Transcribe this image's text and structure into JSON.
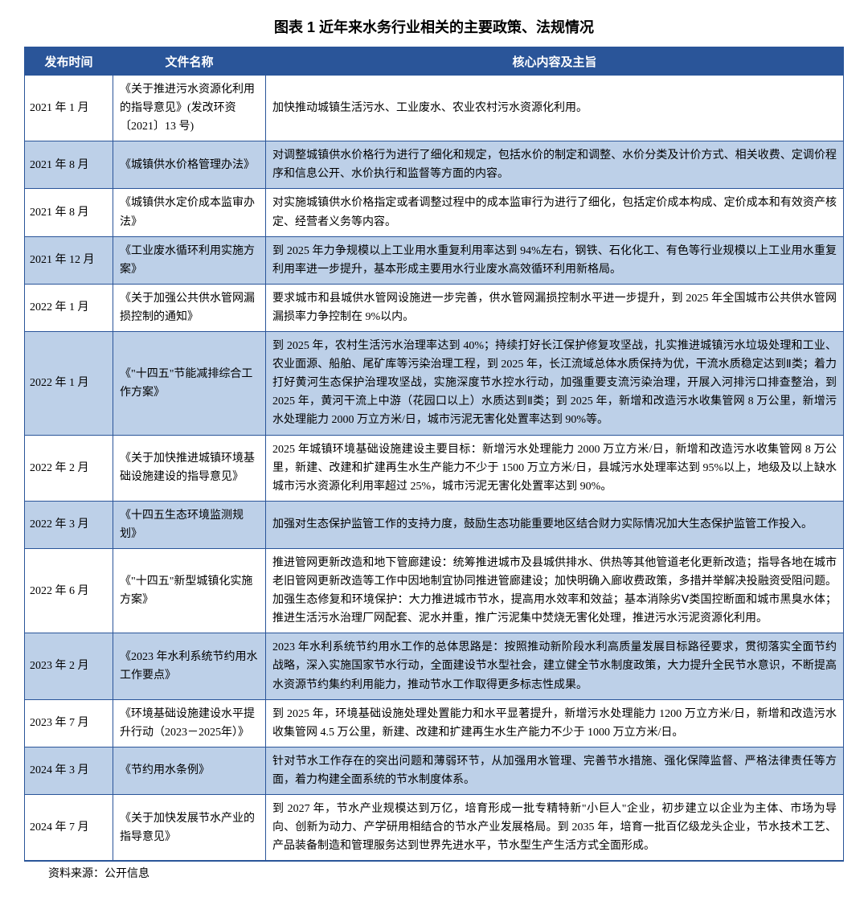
{
  "title": "图表 1   近年来水务行业相关的主要政策、法规情况",
  "footnote": "资料来源：公开信息",
  "columns": [
    {
      "label": "发布时间"
    },
    {
      "label": "文件名称"
    },
    {
      "label": "核心内容及主旨"
    }
  ],
  "colors": {
    "header_bg": "#2a5599",
    "header_fg": "#ffffff",
    "row_even_bg": "#bdd0e8",
    "row_odd_bg": "#ffffff",
    "border": "#2a5599",
    "text": "#000000"
  },
  "typography": {
    "title_fontsize": 18,
    "header_fontsize": 15,
    "cell_fontsize": 14,
    "line_height": 1.65
  },
  "rows": [
    {
      "date": "2021 年 1 月",
      "name": "《关于推进污水资源化利用的指导意见》(发改环资〔2021〕13 号)",
      "content": "加快推动城镇生活污水、工业废水、农业农村污水资源化利用。"
    },
    {
      "date": "2021 年 8 月",
      "name": "《城镇供水价格管理办法》",
      "content": "对调整城镇供水价格行为进行了细化和规定，包括水价的制定和调整、水价分类及计价方式、相关收费、定调价程序和信息公开、水价执行和监督等方面的内容。"
    },
    {
      "date": "2021 年 8 月",
      "name": "《城镇供水定价成本监审办法》",
      "content": "对实施城镇供水价格指定或者调整过程中的成本监审行为进行了细化，包括定价成本构成、定价成本和有效资产核定、经营者义务等内容。"
    },
    {
      "date": "2021 年 12 月",
      "name": "《工业废水循环利用实施方案》",
      "content": "到 2025 年力争规模以上工业用水重复利用率达到 94%左右，钢铁、石化化工、有色等行业规模以上工业用水重复利用率进一步提升，基本形成主要用水行业废水高效循环利用新格局。"
    },
    {
      "date": "2022 年 1 月",
      "name": "《关于加强公共供水管网漏损控制的通知》",
      "content": "要求城市和县城供水管网设施进一步完善，供水管网漏损控制水平进一步提升，到 2025 年全国城市公共供水管网漏损率力争控制在 9%以内。"
    },
    {
      "date": "2022 年 1 月",
      "name": "《\"十四五\"节能减排综合工作方案》",
      "content": "到 2025 年，农村生活污水治理率达到 40%；持续打好长江保护修复攻坚战，扎实推进城镇污水垃圾处理和工业、农业面源、船舶、尾矿库等污染治理工程，到 2025 年，长江流域总体水质保持为优，干流水质稳定达到Ⅱ类；着力打好黄河生态保护治理攻坚战，实施深度节水控水行动，加强重要支流污染治理，开展入河排污口排查整治，到 2025 年，黄河干流上中游（花园口以上）水质达到Ⅱ类；到 2025 年，新增和改造污水收集管网 8 万公里，新增污水处理能力 2000 万立方米/日，城市污泥无害化处置率达到 90%等。"
    },
    {
      "date": "2022 年 2 月",
      "name": "《关于加快推进城镇环境基础设施建设的指导意见》",
      "content": "2025 年城镇环境基础设施建设主要目标：新增污水处理能力 2000 万立方米/日，新增和改造污水收集管网 8 万公里，新建、改建和扩建再生水生产能力不少于 1500 万立方米/日，县城污水处理率达到 95%以上，地级及以上缺水城市污水资源化利用率超过 25%，城市污泥无害化处置率达到 90%。"
    },
    {
      "date": "2022 年 3 月",
      "name": "《十四五生态环境监测规划》",
      "content": "加强对生态保护监管工作的支持力度，鼓励生态功能重要地区结合财力实际情况加大生态保护监管工作投入。"
    },
    {
      "date": "2022 年 6 月",
      "name": "《\"十四五\"新型城镇化实施方案》",
      "content": "推进管网更新改造和地下管廊建设：统筹推进城市及县城供排水、供热等其他管道老化更新改造；指导各地在城市老旧管网更新改造等工作中因地制宜协同推进管廊建设；加快明确入廊收费政策，多措并举解决投融资受阻问题。加强生态修复和环境保护：大力推进城市节水，提高用水效率和效益；基本消除劣Ⅴ类国控断面和城市黑臭水体；推进生活污水治理厂网配套、泥水并重，推广污泥集中焚烧无害化处理，推进污水污泥资源化利用。"
    },
    {
      "date": "2023 年 2 月",
      "name": "《2023 年水利系统节约用水工作要点》",
      "content": "2023 年水利系统节约用水工作的总体思路是：按照推动新阶段水利高质量发展目标路径要求，贯彻落实全面节约战略，深入实施国家节水行动，全面建设节水型社会，建立健全节水制度政策，大力提升全民节水意识，不断提高水资源节约集约利用能力，推动节水工作取得更多标志性成果。"
    },
    {
      "date": "2023 年 7 月",
      "name": "《环境基础设施建设水平提升行动（2023－2025年）》",
      "content": "到 2025 年，环境基础设施处理处置能力和水平显著提升，新增污水处理能力 1200 万立方米/日，新增和改造污水收集管网 4.5 万公里，新建、改建和扩建再生水生产能力不少于 1000 万立方米/日。"
    },
    {
      "date": "2024 年 3 月",
      "name": "《节约用水条例》",
      "content": "针对节水工作存在的突出问题和薄弱环节，从加强用水管理、完善节水措施、强化保障监督、严格法律责任等方面，着力构建全面系统的节水制度体系。"
    },
    {
      "date": "2024 年 7 月",
      "name": "《关于加快发展节水产业的指导意见》",
      "content": "到 2027 年，节水产业规模达到万亿，培育形成一批专精特新\"小巨人\"企业，初步建立以企业为主体、市场为导向、创新为动力、产学研用相结合的节水产业发展格局。到 2035 年，培育一批百亿级龙头企业，节水技术工艺、产品装备制造和管理服务达到世界先进水平，节水型生产生活方式全面形成。"
    }
  ]
}
